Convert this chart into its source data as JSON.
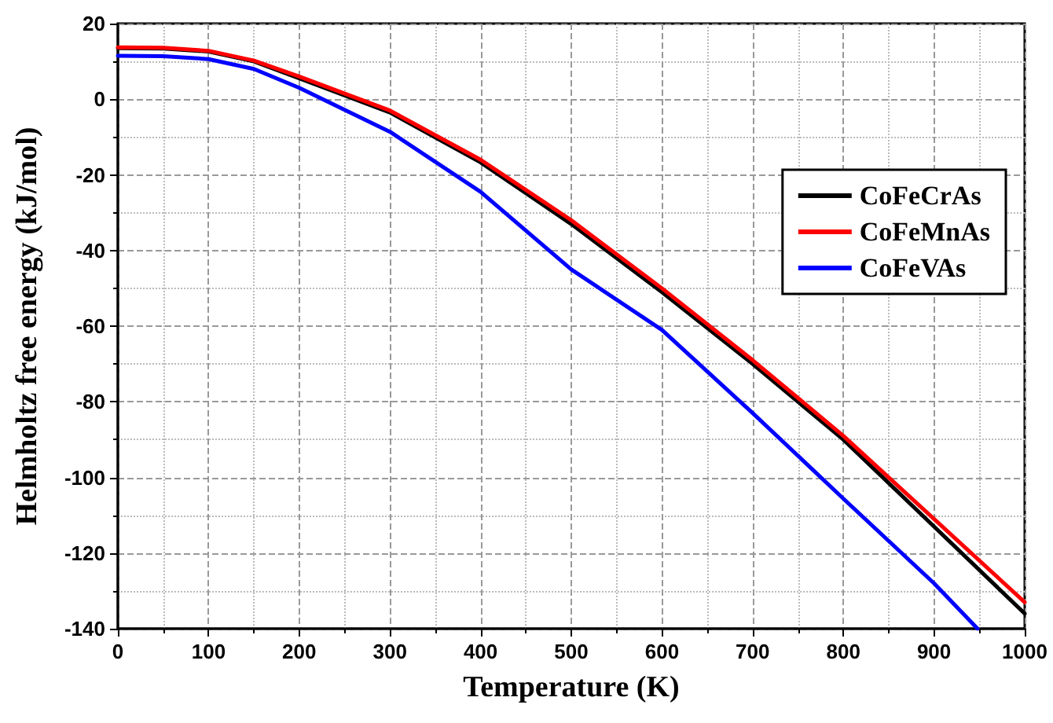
{
  "chart_data": {
    "type": "line",
    "xlabel": "Temperature (K)",
    "ylabel": "Helmholtz free energy (kJ/mol)",
    "xlim": [
      0,
      1000
    ],
    "xticks": [
      0,
      100,
      200,
      300,
      400,
      500,
      600,
      700,
      800,
      900,
      1000
    ],
    "ylim": [
      -140,
      20
    ],
    "yticks": [
      -140,
      -120,
      -100,
      -80,
      -60,
      -40,
      -20,
      0,
      20
    ],
    "grid": true,
    "legend": "top right",
    "marker": "none",
    "line_style": "solid",
    "x": [
      0,
      50,
      100,
      150,
      200,
      300,
      400,
      500,
      600,
      700,
      800,
      900,
      1000
    ],
    "series": [
      {
        "name": "CoFeCrAs",
        "color": "#000000",
        "values": [
          13.5,
          13.4,
          12.6,
          10,
          5.5,
          -3.5,
          -16.7,
          -33,
          -51,
          -70,
          -90,
          -113,
          -136
        ]
      },
      {
        "name": "CoFeMnAs",
        "color": "#ff0000",
        "values": [
          13.7,
          13.6,
          12.8,
          10.2,
          6,
          -3,
          -16,
          -32,
          -50,
          -69,
          -89,
          -111,
          -133
        ]
      },
      {
        "name": "CoFeVAs",
        "color": "#0000ff",
        "x": [
          0,
          50,
          100,
          150,
          200,
          300,
          400,
          500,
          600,
          700,
          800,
          900,
          948
        ],
        "values": [
          11.5,
          11.4,
          10.6,
          8,
          3,
          -8.6,
          -24.5,
          -45,
          -61,
          -83,
          -105.6,
          -128,
          -140
        ]
      }
    ]
  }
}
